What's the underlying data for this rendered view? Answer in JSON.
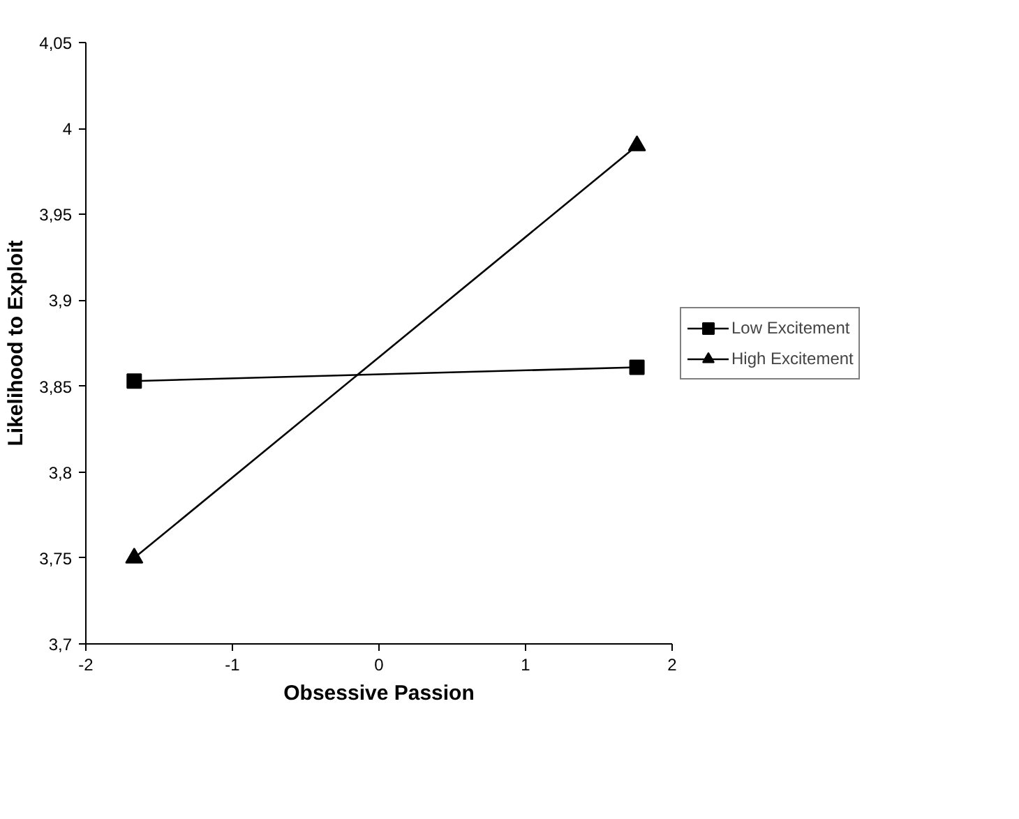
{
  "chart_data": {
    "type": "line",
    "xlabel": "Obsessive Passion",
    "ylabel": "Likelihood to Exploit",
    "x": [
      -1.67,
      1.76
    ],
    "series": [
      {
        "name": "Low Excitement",
        "color": "#000000",
        "marker": "square",
        "values": [
          3.853,
          3.861
        ]
      },
      {
        "name": "High Excitement",
        "color": "#000000",
        "marker": "triangle",
        "values": [
          3.75,
          3.99
        ]
      }
    ],
    "xlim": [
      -2,
      2
    ],
    "xticks": [
      -2,
      -1,
      0,
      1,
      2
    ],
    "ylim": [
      3.7,
      4.05
    ],
    "yticks": [
      {
        "value": 3.7,
        "label": "3,7"
      },
      {
        "value": 3.75,
        "label": "3,75"
      },
      {
        "value": 3.8,
        "label": "3,8"
      },
      {
        "value": 3.85,
        "label": "3,85"
      },
      {
        "value": 3.9,
        "label": "3,9"
      },
      {
        "value": 3.95,
        "label": "3,95"
      },
      {
        "value": 4,
        "label": "4"
      },
      {
        "value": 4.05,
        "label": "4,05"
      }
    ],
    "grid": false,
    "legend": "right",
    "line_style": "solid"
  }
}
